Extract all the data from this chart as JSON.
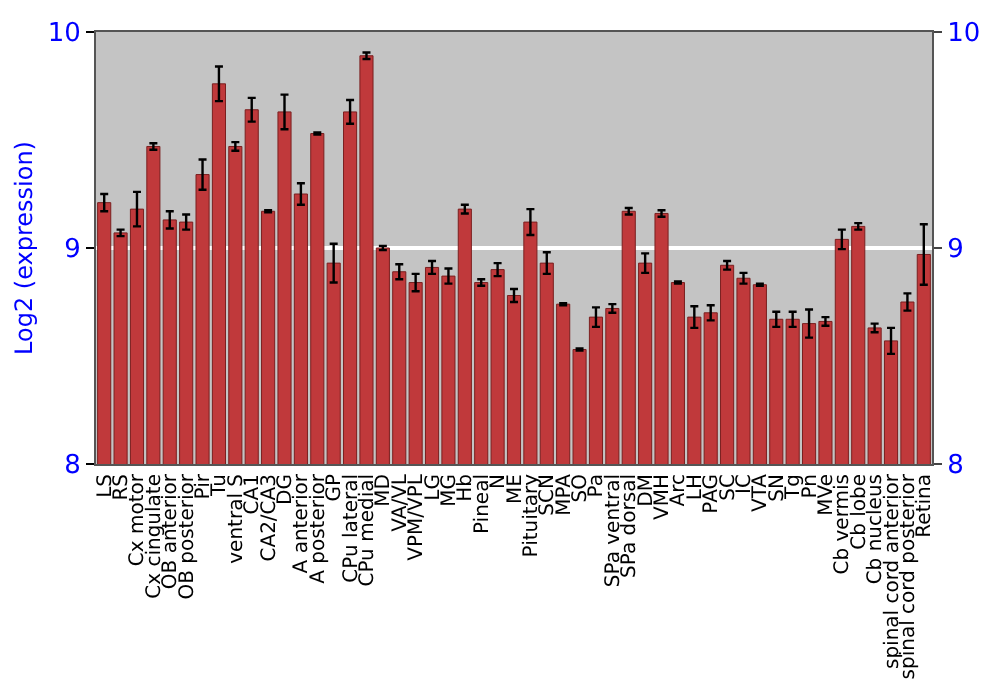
{
  "chart_data": {
    "type": "bar",
    "ylabel": "Log2 (expression)",
    "categories": [
      "LS",
      "RS",
      "Cx motor",
      "Cx cingulate",
      "OB anterior",
      "OB posterior",
      "Pir",
      "Tu",
      "ventral S",
      "CA1",
      "CA2/CA3",
      "DG",
      "A anterior",
      "A posterior",
      "GP",
      "CPu lateral",
      "CPu medial",
      "MD",
      "VA/VL",
      "VPM/VPL",
      "LG",
      "MG",
      "Hb",
      "Pineal",
      "N",
      "ME",
      "Pituitary",
      "SCN",
      "MPA",
      "SO",
      "Pa",
      "SPa ventral",
      "SPa dorsal",
      "DM",
      "VMH",
      "Arc",
      "LH",
      "PAG",
      "SC",
      "IC",
      "VTA",
      "SN",
      "Tg",
      "Pn",
      "MVe",
      "Cb vermis",
      "Cb lobe",
      "Cb nucleus",
      "spinal cord anterior",
      "spinal cord posterior",
      "Retina"
    ],
    "values": [
      9.21,
      9.07,
      9.18,
      9.47,
      9.13,
      9.12,
      9.34,
      9.76,
      9.47,
      9.64,
      9.17,
      9.63,
      9.25,
      9.53,
      8.93,
      9.63,
      9.89,
      9.0,
      8.89,
      8.84,
      8.91,
      8.87,
      9.18,
      8.84,
      8.9,
      8.78,
      9.12,
      8.93,
      8.74,
      8.53,
      8.68,
      8.72,
      9.17,
      8.93,
      9.16,
      8.84,
      8.68,
      8.7,
      8.92,
      8.86,
      8.83,
      8.67,
      8.67,
      8.65,
      8.66,
      9.04,
      9.1,
      8.63,
      8.57,
      8.75,
      8.97
    ],
    "errors": [
      0.04,
      0.015,
      0.08,
      0.015,
      0.04,
      0.035,
      0.07,
      0.08,
      0.02,
      0.055,
      0.005,
      0.08,
      0.05,
      0.005,
      0.09,
      0.055,
      0.015,
      0.01,
      0.035,
      0.04,
      0.03,
      0.035,
      0.02,
      0.015,
      0.03,
      0.03,
      0.06,
      0.05,
      0.005,
      0.005,
      0.045,
      0.02,
      0.015,
      0.045,
      0.015,
      0.005,
      0.05,
      0.035,
      0.02,
      0.025,
      0.005,
      0.035,
      0.035,
      0.065,
      0.02,
      0.045,
      0.015,
      0.02,
      0.06,
      0.04,
      0.14
    ],
    "color": "#c0393b",
    "ylim": [
      8,
      10
    ],
    "yticks": [
      8,
      9,
      10
    ],
    "y2lim": [
      8,
      10
    ],
    "y2ticks": [
      8,
      9,
      10
    ],
    "grid": "y"
  }
}
